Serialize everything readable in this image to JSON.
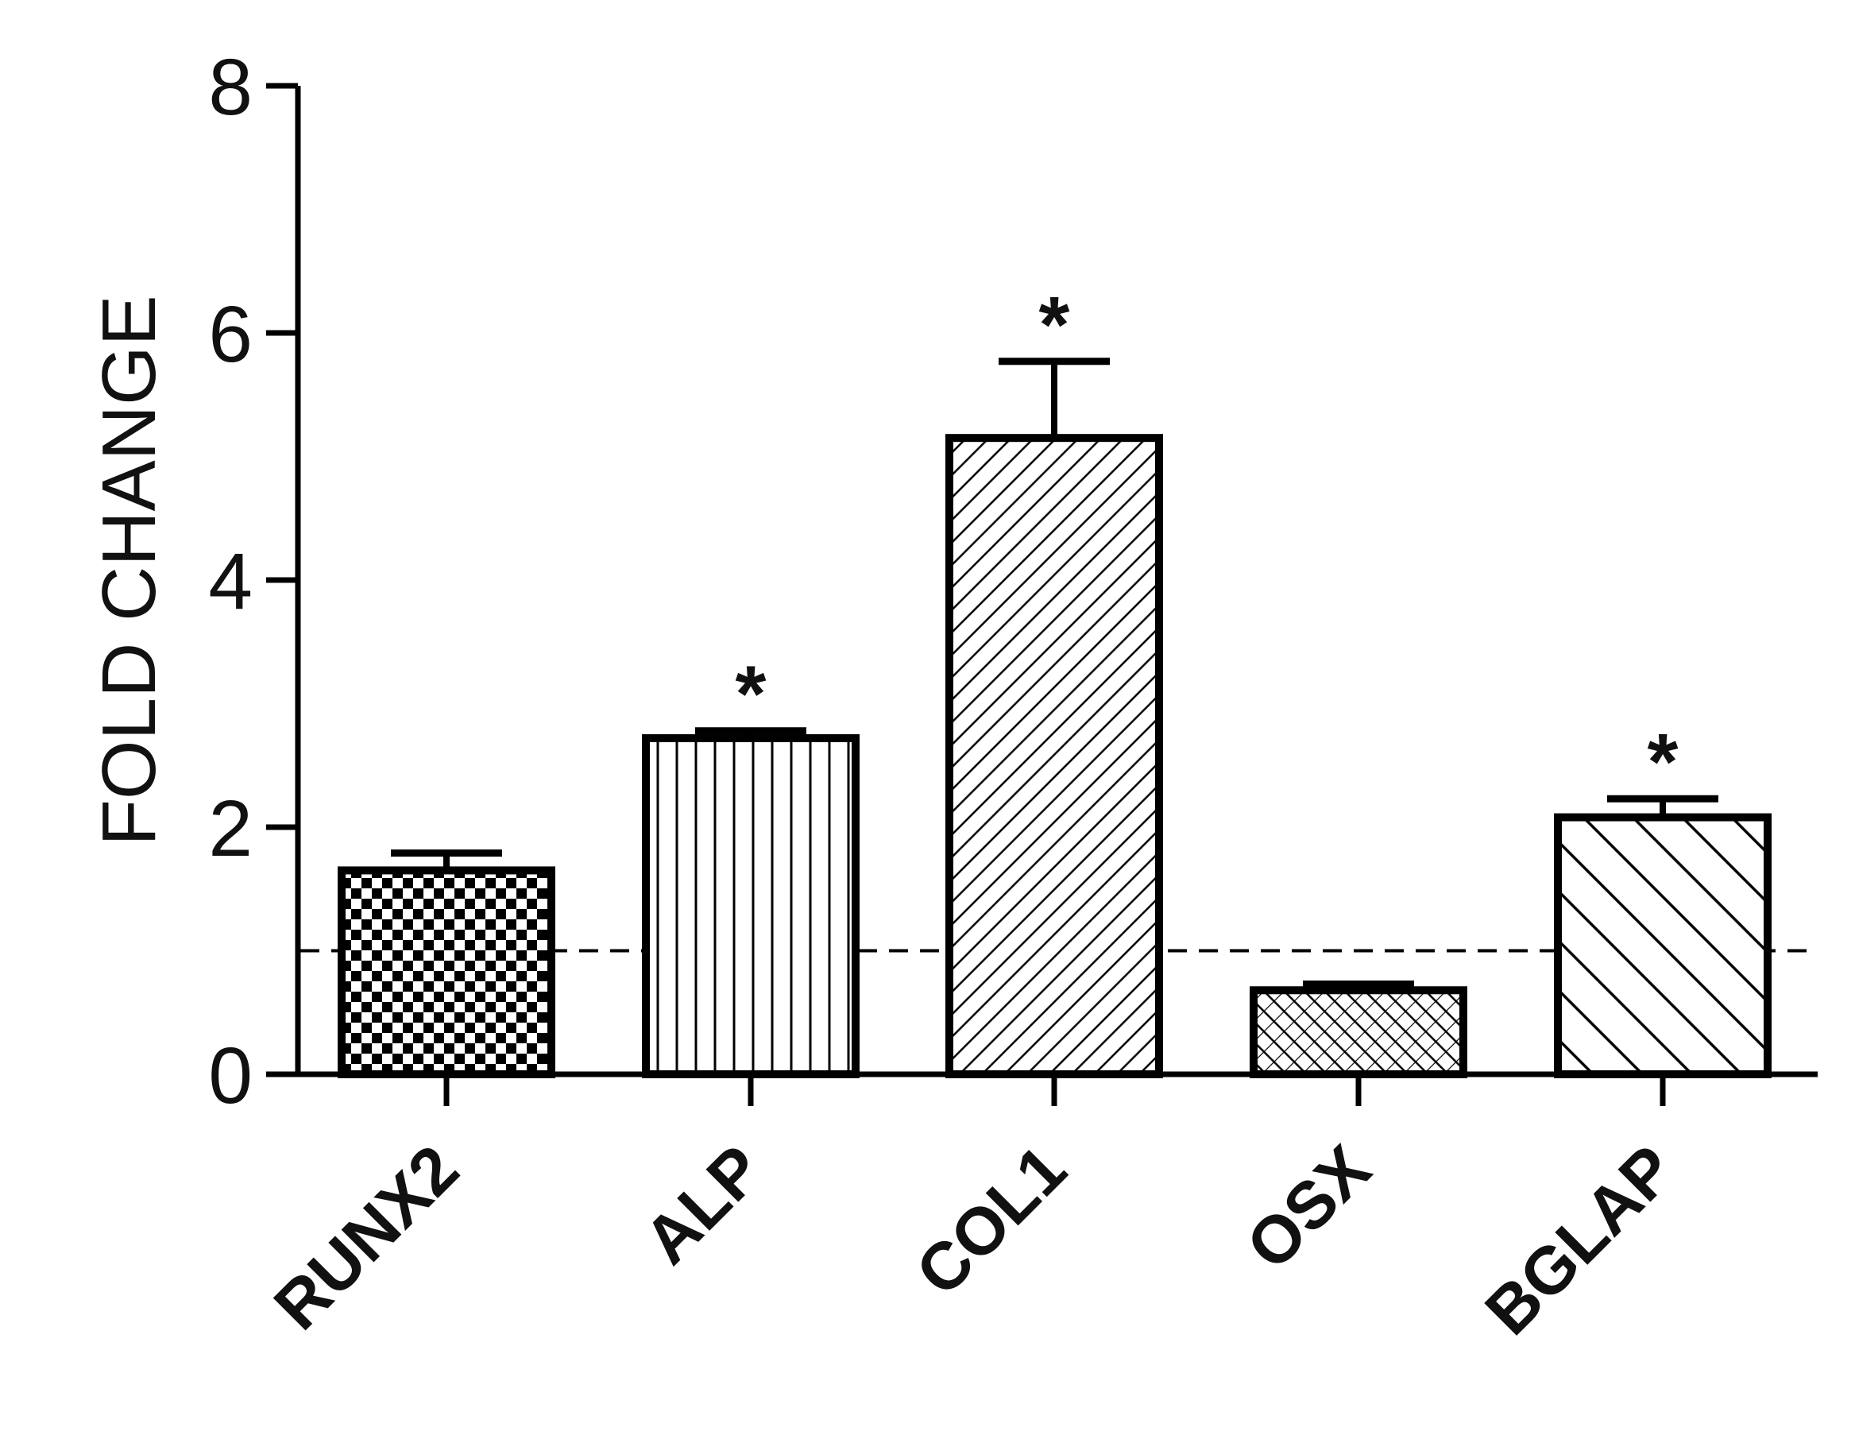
{
  "chart_data": {
    "type": "bar",
    "title": "",
    "xlabel": "",
    "ylabel": "FOLD CHANGE",
    "ylim": [
      0,
      8
    ],
    "yticks": [
      0,
      2,
      4,
      6,
      8
    ],
    "grid": false,
    "reference_line": {
      "y": 1,
      "style": "dashed"
    },
    "categories": [
      "RUNX2",
      "ALP",
      "COL1",
      "OSX",
      "BGLAP"
    ],
    "values": [
      1.65,
      2.72,
      5.15,
      0.68,
      2.08
    ],
    "errors": [
      0.14,
      0.06,
      0.62,
      0.05,
      0.15
    ],
    "significance": [
      "",
      "*",
      "*",
      "",
      "*"
    ],
    "patterns": [
      "checker",
      "vertical-lines",
      "diagonal-dense-backslash",
      "diagonal-crosshatch",
      "diagonal-slash"
    ]
  }
}
